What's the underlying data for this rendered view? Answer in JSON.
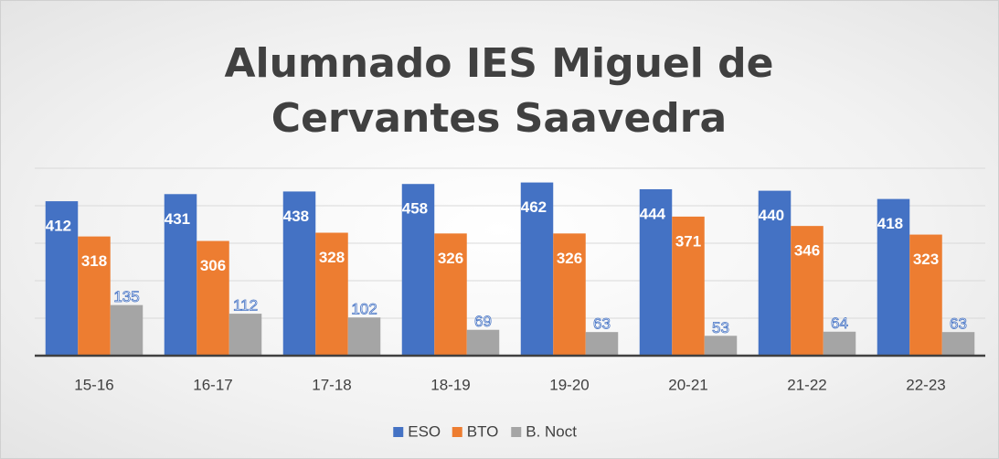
{
  "chart_data": {
    "type": "bar",
    "title": "Alumnado IES Miguel de Cervantes Saavedra",
    "categories": [
      "15-16",
      "16-17",
      "17-18",
      "18-19",
      "19-20",
      "20-21",
      "21-22",
      "22-23"
    ],
    "series": [
      {
        "name": "ESO",
        "color": "#4472c4",
        "values": [
          412,
          431,
          438,
          458,
          462,
          444,
          440,
          418
        ]
      },
      {
        "name": "BTO",
        "color": "#ed7d31",
        "values": [
          318,
          306,
          328,
          326,
          326,
          371,
          346,
          323
        ]
      },
      {
        "name": "B. Noct",
        "color": "#a5a5a5",
        "values": [
          135,
          112,
          102,
          69,
          63,
          53,
          64,
          63
        ]
      }
    ],
    "ylim": [
      0,
      500
    ],
    "yticks": [
      0,
      100,
      200,
      300,
      400,
      500
    ],
    "grid": true,
    "legend": "bottom"
  }
}
